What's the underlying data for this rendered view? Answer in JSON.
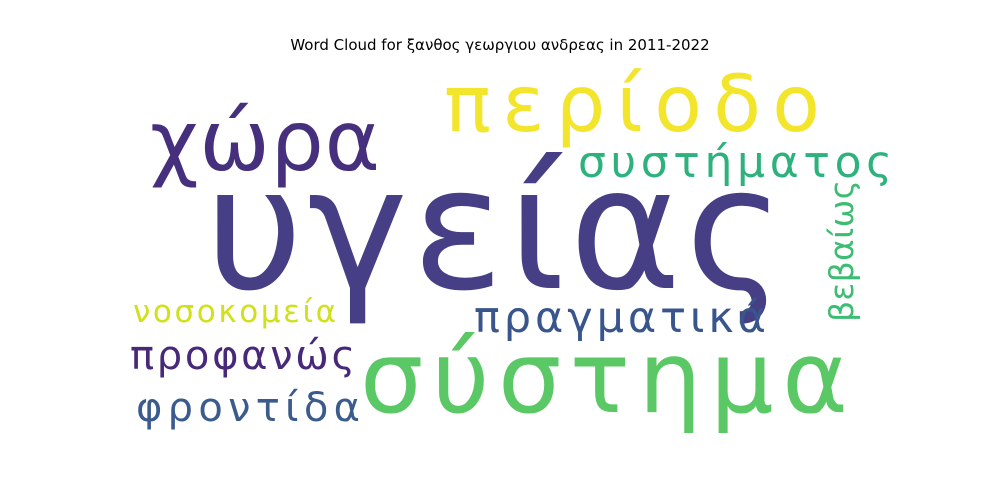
{
  "chart_data": {
    "type": "wordcloud",
    "title": "Word Cloud for ξανθος γεωργιου ανδρεας in 2011-2022",
    "words": [
      {
        "text": "υγείας",
        "color": "#463f85"
      },
      {
        "text": "σύστημα",
        "color": "#5ac864"
      },
      {
        "text": "περίοδο",
        "color": "#f2e52c"
      },
      {
        "text": "χώρα",
        "color": "#46307e"
      },
      {
        "text": "συστήματος",
        "color": "#2db27d"
      },
      {
        "text": "πραγματικά",
        "color": "#39568c"
      },
      {
        "text": "προφανώς",
        "color": "#482878"
      },
      {
        "text": "φροντίδα",
        "color": "#3b5b8c"
      },
      {
        "text": "νοσοκομεία",
        "color": "#d0e11c"
      },
      {
        "text": "βεβαίως",
        "color": "#3dbc74"
      }
    ]
  }
}
